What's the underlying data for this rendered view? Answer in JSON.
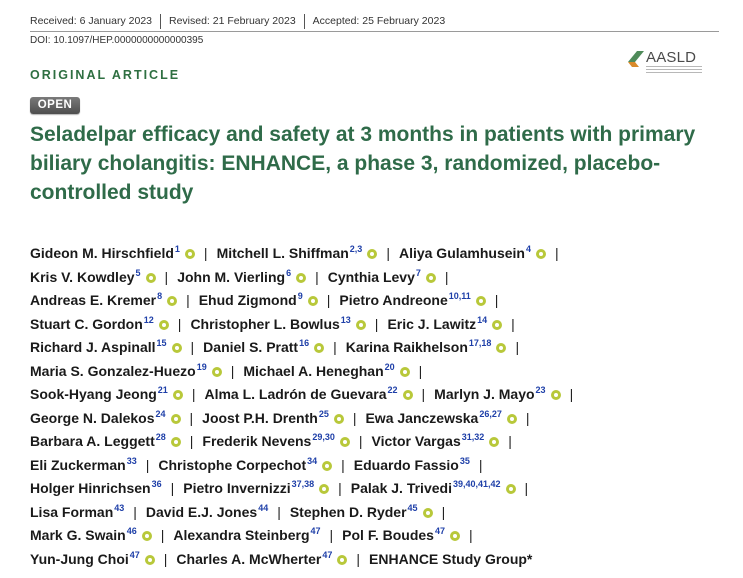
{
  "header": {
    "received": "Received: 6 January 2023",
    "revised": "Revised: 21 February 2023",
    "accepted": "Accepted: 25 February 2023",
    "doi": "DOI: 10.1097/HEP.0000000000000395"
  },
  "logo": {
    "text": "AASLD",
    "icon": "aasld-logo-icon"
  },
  "section_label": "ORIGINAL ARTICLE",
  "badge": "OPEN",
  "title": "Seladelpar efficacy and safety at 3 months in patients with primary biliary cholangitis: ENHANCE, a phase 3, randomized, placebo-controlled study",
  "author_lines": [
    [
      {
        "name": "Gideon M. Hirschfield",
        "sup": "1",
        "orcid": true
      },
      {
        "name": "Mitchell L. Shiffman",
        "sup": "2,3",
        "orcid": true
      },
      {
        "name": "Aliya Gulamhusein",
        "sup": "4",
        "orcid": true
      }
    ],
    [
      {
        "name": "Kris V. Kowdley",
        "sup": "5",
        "orcid": true
      },
      {
        "name": "John M. Vierling",
        "sup": "6",
        "orcid": true
      },
      {
        "name": "Cynthia Levy",
        "sup": "7",
        "orcid": true
      }
    ],
    [
      {
        "name": "Andreas E. Kremer",
        "sup": "8",
        "orcid": true
      },
      {
        "name": "Ehud Zigmond",
        "sup": "9",
        "orcid": true
      },
      {
        "name": "Pietro Andreone",
        "sup": "10,11",
        "orcid": true
      }
    ],
    [
      {
        "name": "Stuart C. Gordon",
        "sup": "12",
        "orcid": true
      },
      {
        "name": "Christopher L. Bowlus",
        "sup": "13",
        "orcid": true
      },
      {
        "name": "Eric J. Lawitz",
        "sup": "14",
        "orcid": true
      }
    ],
    [
      {
        "name": "Richard J. Aspinall",
        "sup": "15",
        "orcid": true
      },
      {
        "name": "Daniel S. Pratt",
        "sup": "16",
        "orcid": true
      },
      {
        "name": "Karina Raikhelson",
        "sup": "17,18",
        "orcid": true
      }
    ],
    [
      {
        "name": "Maria S. Gonzalez-Huezo",
        "sup": "19",
        "orcid": true
      },
      {
        "name": "Michael A. Heneghan",
        "sup": "20",
        "orcid": true
      }
    ],
    [
      {
        "name": "Sook-Hyang Jeong",
        "sup": "21",
        "orcid": true
      },
      {
        "name": "Alma L. Ladrón de Guevara",
        "sup": "22",
        "orcid": true
      },
      {
        "name": "Marlyn J. Mayo",
        "sup": "23",
        "orcid": true
      }
    ],
    [
      {
        "name": "George N. Dalekos",
        "sup": "24",
        "orcid": true
      },
      {
        "name": "Joost P.H. Drenth",
        "sup": "25",
        "orcid": true
      },
      {
        "name": "Ewa Janczewska",
        "sup": "26,27",
        "orcid": true
      }
    ],
    [
      {
        "name": "Barbara A. Leggett",
        "sup": "28",
        "orcid": true
      },
      {
        "name": "Frederik Nevens",
        "sup": "29,30",
        "orcid": true
      },
      {
        "name": "Victor Vargas",
        "sup": "31,32",
        "orcid": true
      }
    ],
    [
      {
        "name": "Eli Zuckerman",
        "sup": "33",
        "orcid": false
      },
      {
        "name": "Christophe Corpechot",
        "sup": "34",
        "orcid": true
      },
      {
        "name": "Eduardo Fassio",
        "sup": "35",
        "orcid": false
      }
    ],
    [
      {
        "name": "Holger Hinrichsen",
        "sup": "36",
        "orcid": false
      },
      {
        "name": "Pietro Invernizzi",
        "sup": "37,38",
        "orcid": true
      },
      {
        "name": "Palak J. Trivedi",
        "sup": "39,40,41,42",
        "orcid": true
      }
    ],
    [
      {
        "name": "Lisa Forman",
        "sup": "43",
        "orcid": false
      },
      {
        "name": "David E.J. Jones",
        "sup": "44",
        "orcid": false
      },
      {
        "name": "Stephen D. Ryder",
        "sup": "45",
        "orcid": true
      }
    ],
    [
      {
        "name": "Mark G. Swain",
        "sup": "46",
        "orcid": true
      },
      {
        "name": "Alexandra Steinberg",
        "sup": "47",
        "orcid": false
      },
      {
        "name": "Pol F. Boudes",
        "sup": "47",
        "orcid": true
      }
    ],
    [
      {
        "name": "Yun-Jung Choi",
        "sup": "47",
        "orcid": true
      },
      {
        "name": "Charles A. McWherter",
        "sup": "47",
        "orcid": true
      },
      {
        "name": "ENHANCE Study Group*",
        "sup": "",
        "orcid": false
      }
    ]
  ],
  "separator": "|"
}
